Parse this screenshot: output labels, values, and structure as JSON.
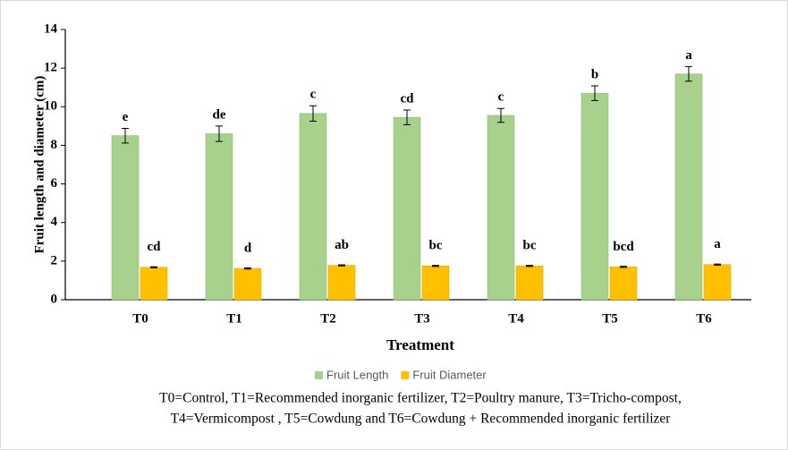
{
  "chart_data": {
    "type": "bar",
    "ylabel": "Fruit length and diameter (cm)",
    "xlabel": "Treatment",
    "categories": [
      "T0",
      "T1",
      "T2",
      "T3",
      "T4",
      "T5",
      "T6"
    ],
    "series": [
      {
        "name": "Fruit Length",
        "color": "#a9d18e",
        "values": [
          8.5,
          8.6,
          9.65,
          9.45,
          9.55,
          10.7,
          11.7
        ],
        "errors": [
          0.38,
          0.4,
          0.4,
          0.38,
          0.36,
          0.38,
          0.38
        ],
        "labels": [
          "e",
          "de",
          "c",
          "cd",
          "c",
          "b",
          "a"
        ]
      },
      {
        "name": "Fruit Diameter",
        "color": "#ffc000",
        "values": [
          1.68,
          1.62,
          1.78,
          1.75,
          1.75,
          1.7,
          1.82
        ],
        "errors": [
          0.03,
          0.03,
          0.03,
          0.03,
          0.03,
          0.03,
          0.03
        ],
        "labels": [
          "cd",
          "d",
          "ab",
          "bc",
          "bc",
          "bcd",
          "a"
        ]
      }
    ],
    "ylim": [
      0,
      14
    ],
    "yticks": [
      0,
      2,
      4,
      6,
      8,
      10,
      12,
      14
    ],
    "caption": [
      "T0=Control, T1=Recommended inorganic fertilizer, T2=Poultry manure, T3=Tricho-compost,",
      "T4=Vermicompost  , T5=Cowdung and T6=Cowdung + Recommended inorganic fertilizer"
    ]
  }
}
